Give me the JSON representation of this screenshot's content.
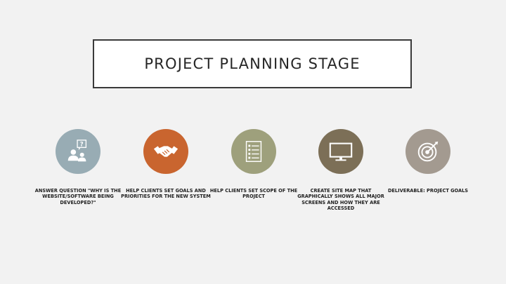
{
  "slide": {
    "title": "PROJECT PLANNING STAGE"
  },
  "steps": [
    {
      "text": "ANSWER QUESTION \"WHY IS THE WEBSITE/SOFTWARE BEING DEVELOPED?\"",
      "icon": "person-question-icon",
      "color": "#98acb4"
    },
    {
      "text": "HELP CLIENTS SET GOALS AND PRIORITIES FOR THE NEW SYSTEM",
      "icon": "handshake-icon",
      "color": "#c9652f"
    },
    {
      "text": "HELP CLIENTS SET SCOPE OF THE PROJECT",
      "icon": "checklist-icon",
      "color": "#9ea07c"
    },
    {
      "text": "CREATE SITE MAP THAT GRAPHICALLY SHOWS ALL MAJOR SCREENS AND HOW THEY ARE ACCESSED",
      "icon": "monitor-icon",
      "color": "#7c6f57"
    },
    {
      "text": "DELIVERABLE: PROJECT GOALS",
      "icon": "target-icon",
      "color": "#a39a90"
    }
  ]
}
